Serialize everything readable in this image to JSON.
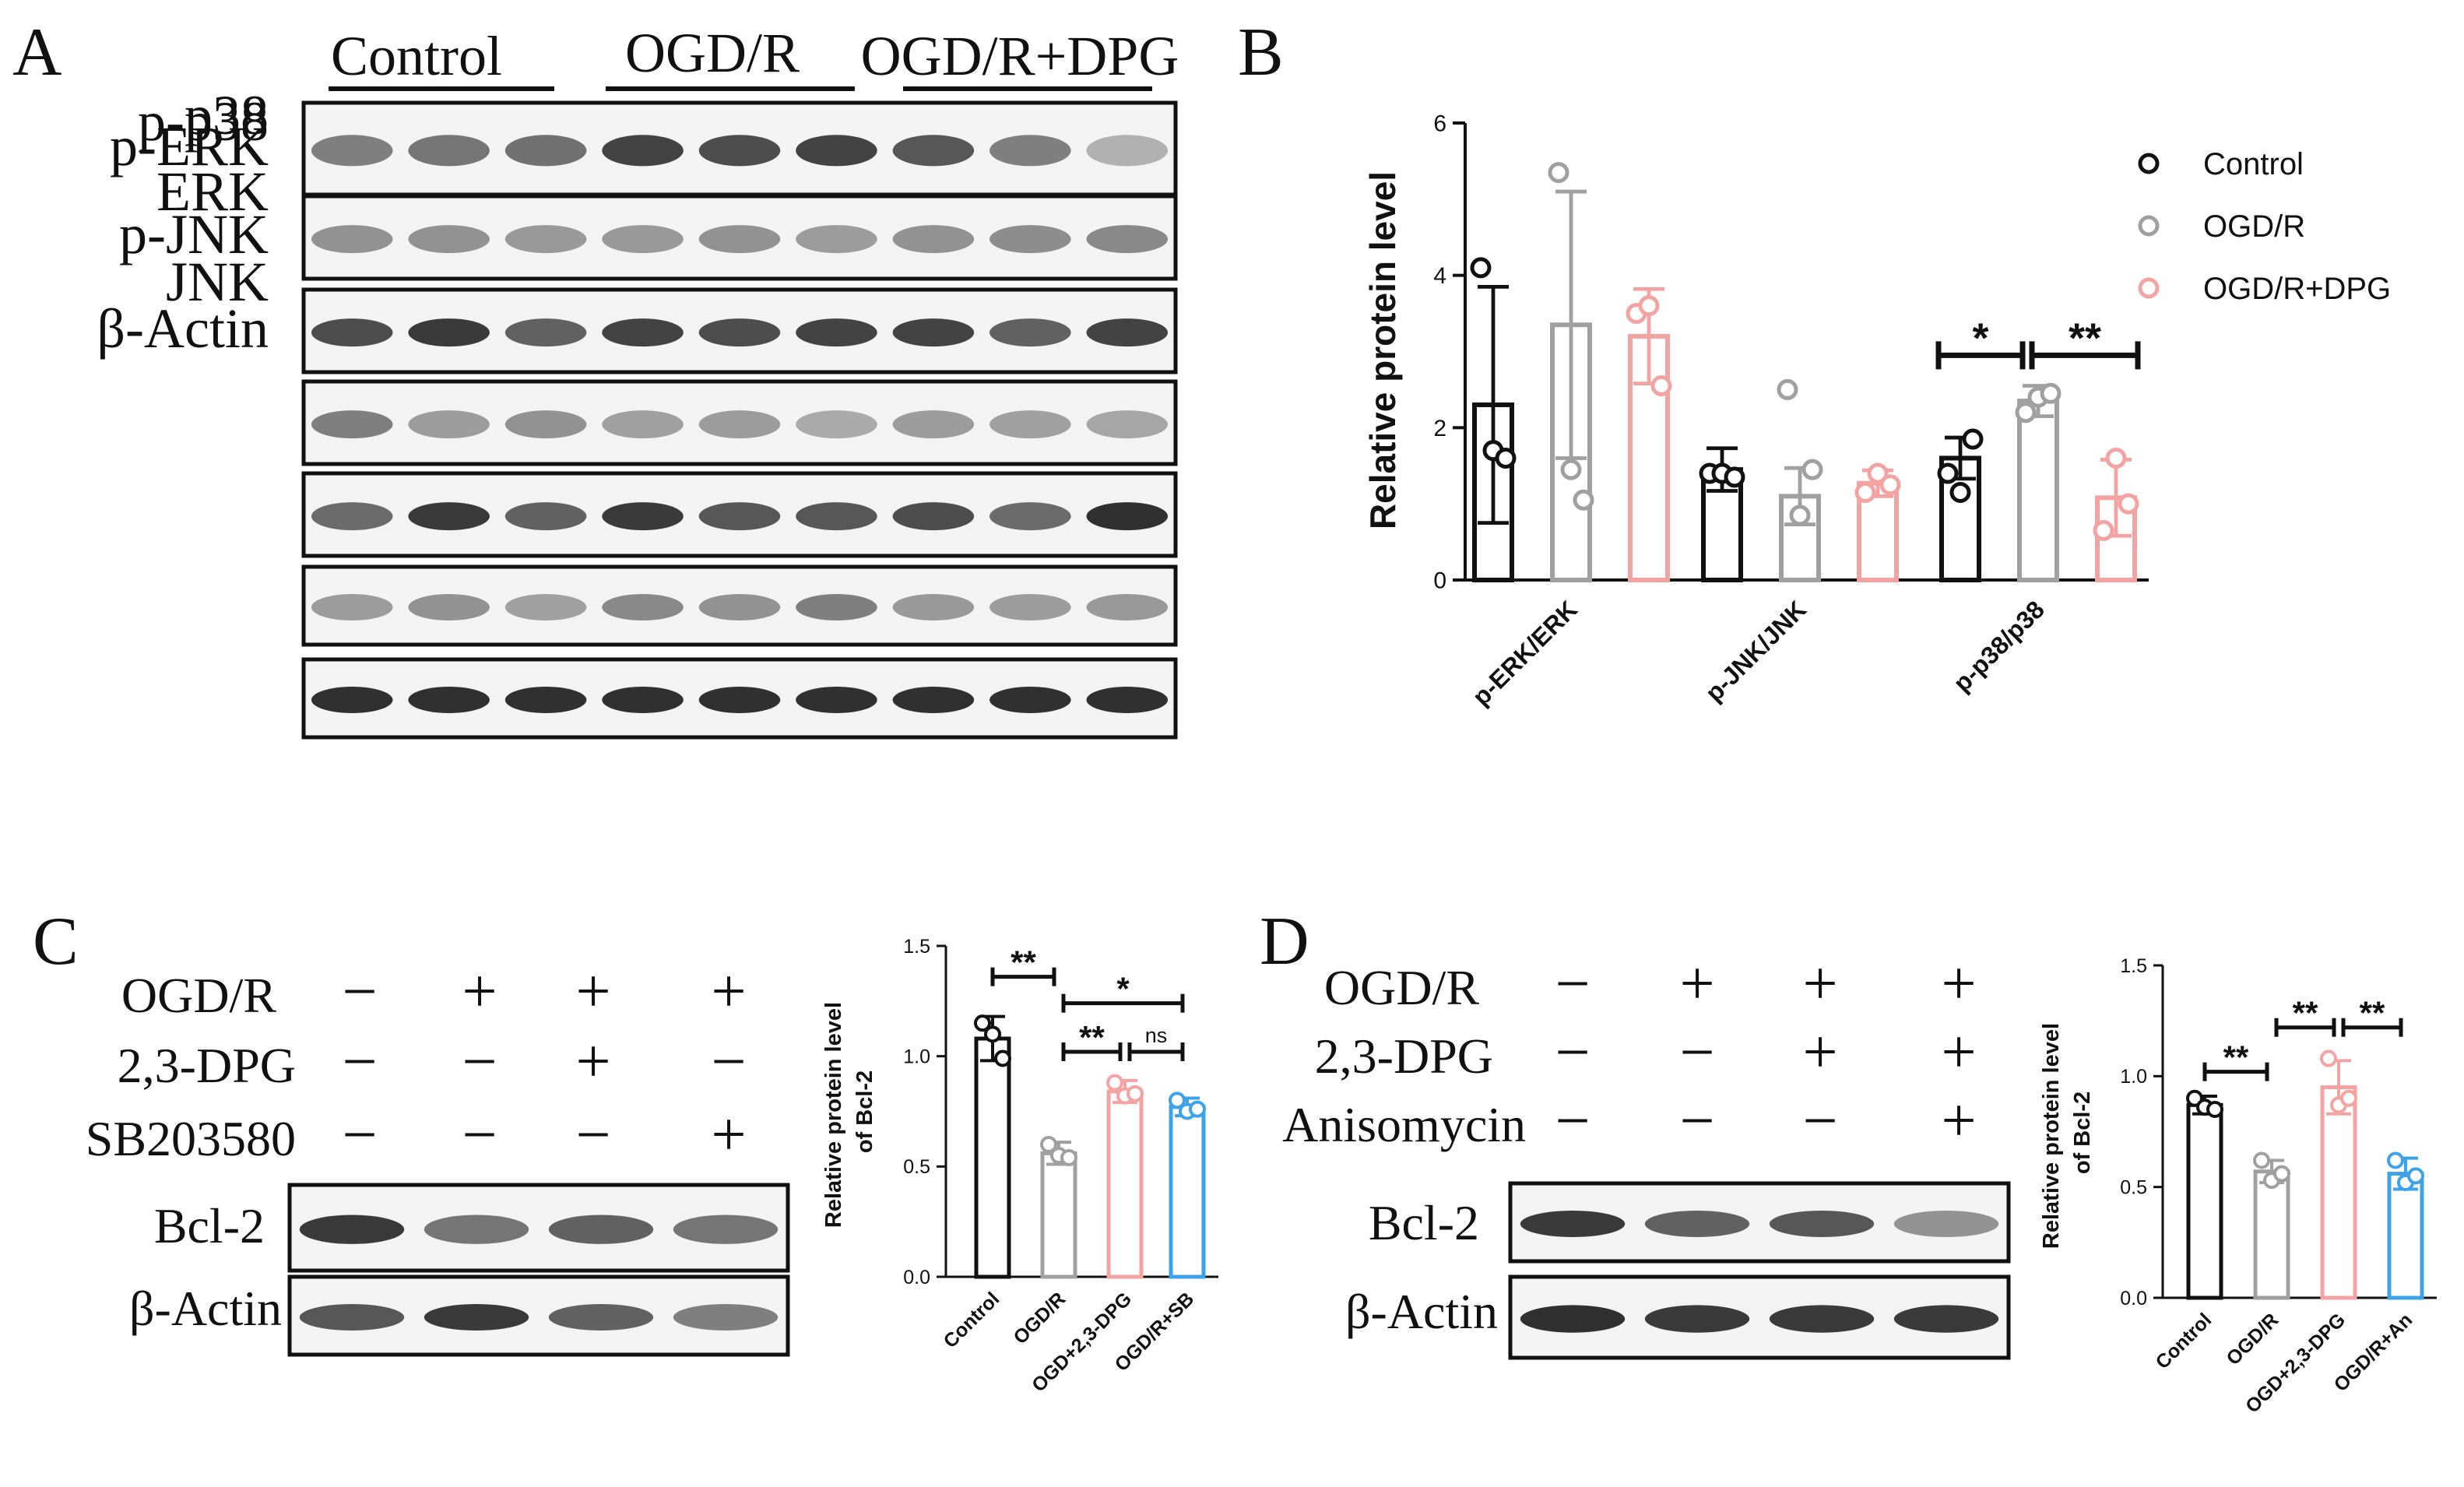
{
  "panels": {
    "A": {
      "letter": "A",
      "groups": [
        "Control",
        "OGD/R",
        "OGD/R+DPG"
      ],
      "blots": [
        {
          "label": "p-p38",
          "intensity": [
            0.55,
            0.6,
            0.62,
            0.85,
            0.8,
            0.85,
            0.75,
            0.55,
            0.3
          ]
        },
        {
          "label": "p38",
          "intensity": [
            0.45,
            0.45,
            0.42,
            0.42,
            0.45,
            0.4,
            0.45,
            0.48,
            0.5
          ]
        },
        {
          "label": "p-ERK",
          "intensity": [
            0.8,
            0.9,
            0.7,
            0.85,
            0.8,
            0.85,
            0.85,
            0.7,
            0.85
          ]
        },
        {
          "label": "ERK",
          "intensity": [
            0.55,
            0.4,
            0.45,
            0.38,
            0.4,
            0.33,
            0.4,
            0.38,
            0.35
          ]
        },
        {
          "label": "p-JNK",
          "intensity": [
            0.65,
            0.9,
            0.7,
            0.9,
            0.75,
            0.75,
            0.8,
            0.65,
            0.95
          ]
        },
        {
          "label": "JNK",
          "intensity": [
            0.4,
            0.45,
            0.38,
            0.5,
            0.45,
            0.55,
            0.42,
            0.4,
            0.42
          ]
        },
        {
          "label": "β-Actin",
          "intensity": [
            0.95,
            0.95,
            0.95,
            0.95,
            0.95,
            0.95,
            0.95,
            0.95,
            0.95
          ]
        }
      ]
    },
    "B": {
      "letter": "B",
      "chart_data": {
        "type": "bar",
        "categories": [
          "p-ERK/ERK",
          "p-JNK/JNK",
          "p-p38/p38"
        ],
        "ylabel": "Relative protein level",
        "ylim": [
          0,
          6
        ],
        "yticks": [
          "0",
          "2",
          "4",
          "6"
        ],
        "series": [
          {
            "name": "Control",
            "values": [
              2.3,
              1.45,
              1.6
            ],
            "err": [
              1.55,
              0.28,
              0.27
            ],
            "points": [
              [
                4.1,
                1.4,
                1.4
              ],
              [
                1.7,
                1.4,
                1.15
              ],
              [
                1.6,
                1.35,
                1.85
              ]
            ],
            "color": "#111111"
          },
          {
            "name": "OGD/R",
            "values": [
              3.35,
              1.1,
              2.35
            ],
            "err": [
              1.75,
              0.37,
              0.2
            ],
            "points": [
              [
                5.35,
                2.5,
                2.2
              ],
              [
                1.45,
                0.85,
                2.4
              ],
              [
                1.05,
                1.45,
                2.45
              ]
            ],
            "color": "#a0a0a0"
          },
          {
            "name": "OGD/R+DPG",
            "values": [
              3.2,
              1.27,
              1.08
            ],
            "err": [
              0.62,
              0.17,
              0.5
            ],
            "points": [
              [
                3.5,
                1.15,
                0.65
              ],
              [
                3.6,
                1.4,
                1.6
              ],
              [
                2.55,
                1.25,
                1.0
              ]
            ],
            "color": "#f4a3a3"
          }
        ],
        "significance": [
          {
            "text": "*",
            "category": "p-p38/p38",
            "from": 0,
            "to": 1,
            "y": 2.95
          },
          {
            "text": "**",
            "category": "p-p38/p38",
            "from": 1,
            "to": 2,
            "y": 2.95
          }
        ]
      }
    },
    "C": {
      "letter": "C",
      "conditions": [
        {
          "label": "OGD/R",
          "values": [
            "−",
            "+",
            "+",
            "+"
          ]
        },
        {
          "label": "2,3-DPG",
          "values": [
            "−",
            "−",
            "+",
            "−"
          ]
        },
        {
          "label": "SB203580",
          "values": [
            "−",
            "−",
            "−",
            "+"
          ]
        }
      ],
      "blots": [
        {
          "label": "Bcl-2",
          "intensity": [
            0.9,
            0.6,
            0.7,
            0.6
          ]
        },
        {
          "label": "β-Actin",
          "intensity": [
            0.75,
            0.9,
            0.7,
            0.55
          ]
        }
      ],
      "chart_data": {
        "type": "bar",
        "categories": [
          "Control",
          "OGD/R",
          "OGD+2,3-DPG",
          "OGD/R+SB"
        ],
        "ylabel": "Relative protein level\nof Bcl-2",
        "ylim": [
          0,
          1.5
        ],
        "yticks": [
          "0.0",
          "0.5",
          "1.0",
          "1.5"
        ],
        "values": [
          1.08,
          0.56,
          0.84,
          0.77
        ],
        "err": [
          0.1,
          0.05,
          0.05,
          0.04
        ],
        "points": [
          [
            1.15,
            1.1,
            0.99
          ],
          [
            0.6,
            0.55,
            0.54
          ],
          [
            0.88,
            0.82,
            0.83
          ],
          [
            0.8,
            0.75,
            0.76
          ]
        ],
        "colors": [
          "#111111",
          "#a0a0a0",
          "#f4a3a3",
          "#3ea3e6"
        ],
        "significance": [
          {
            "text": "**",
            "from": 0,
            "to": 1,
            "y": 1.36
          },
          {
            "text": "*",
            "from": 1,
            "to": 3,
            "y": 1.24
          },
          {
            "text": "**",
            "from": 1,
            "to": 2,
            "y": 1.02
          },
          {
            "text": "ns",
            "from": 2,
            "to": 3,
            "y": 1.02
          }
        ]
      }
    },
    "D": {
      "letter": "D",
      "conditions": [
        {
          "label": "OGD/R",
          "values": [
            "−",
            "+",
            "+",
            "+"
          ]
        },
        {
          "label": "2,3-DPG",
          "values": [
            "−",
            "−",
            "+",
            "+"
          ]
        },
        {
          "label": "Anisomycin",
          "values": [
            "−",
            "−",
            "−",
            "+"
          ]
        }
      ],
      "blots": [
        {
          "label": "Bcl-2",
          "intensity": [
            0.9,
            0.7,
            0.75,
            0.45
          ]
        },
        {
          "label": "β-Actin",
          "intensity": [
            0.95,
            0.9,
            0.9,
            0.9
          ]
        }
      ],
      "chart_data": {
        "type": "bar",
        "categories": [
          "Control",
          "OGD/R",
          "OGD+2,3-DPG",
          "OGD/R+An"
        ],
        "ylabel": "Relative protein level\nof Bcl-2",
        "ylim": [
          0,
          1.5
        ],
        "yticks": [
          "0.0",
          "0.5",
          "1.0",
          "1.5"
        ],
        "values": [
          0.87,
          0.57,
          0.95,
          0.56
        ],
        "err": [
          0.04,
          0.05,
          0.12,
          0.07
        ],
        "points": [
          [
            0.9,
            0.86,
            0.85
          ],
          [
            0.62,
            0.53,
            0.56
          ],
          [
            1.08,
            0.87,
            0.9
          ],
          [
            0.62,
            0.52,
            0.55
          ]
        ],
        "colors": [
          "#111111",
          "#a0a0a0",
          "#f4a3a3",
          "#3ea3e6"
        ],
        "significance": [
          {
            "text": "**",
            "from": 0,
            "to": 1,
            "y": 1.02
          },
          {
            "text": "**",
            "from": 1,
            "to": 2,
            "y": 1.22
          },
          {
            "text": "**",
            "from": 2,
            "to": 3,
            "y": 1.22
          }
        ]
      }
    }
  }
}
